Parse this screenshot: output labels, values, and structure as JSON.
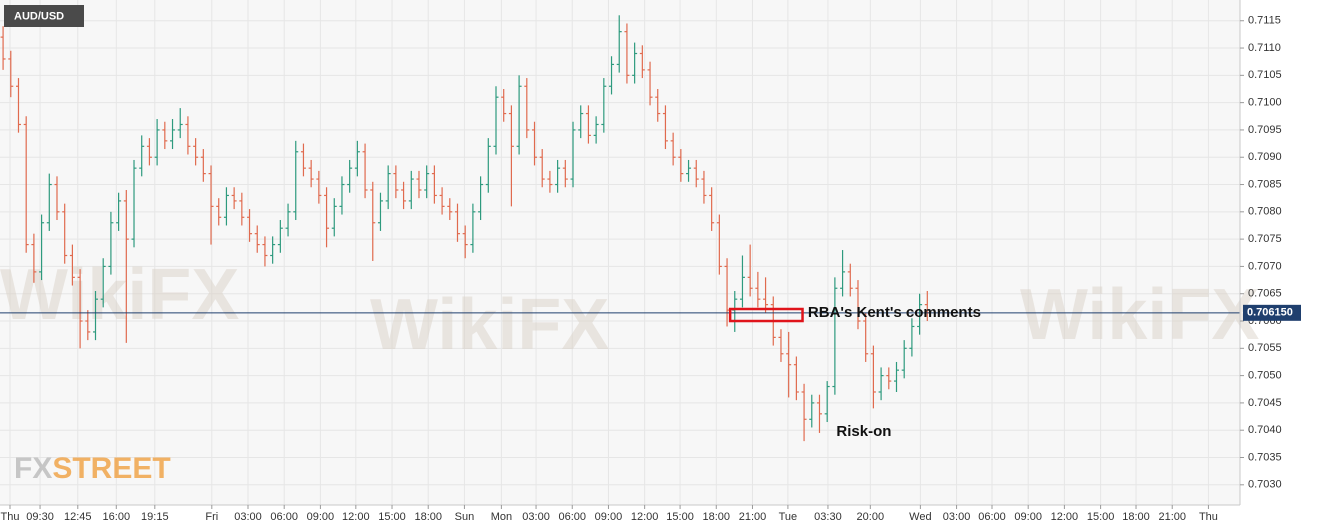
{
  "chart_data": {
    "type": "ohlc",
    "symbol": "AUD/USD",
    "logo": [
      "FX",
      "STREET"
    ],
    "watermark": "WikiFX",
    "up_color": "#2e9a7e",
    "down_color": "#e06a4e",
    "grid": true,
    "xlim": [
      -0.4,
      160.6
    ],
    "ylim": [
      0.70263,
      0.71188
    ],
    "yticks": [
      {
        "value": 0.703,
        "label": "0.7030"
      },
      {
        "value": 0.7035,
        "label": "0.7035"
      },
      {
        "value": 0.704,
        "label": "0.7040"
      },
      {
        "value": 0.7045,
        "label": "0.7045"
      },
      {
        "value": 0.705,
        "label": "0.7050"
      },
      {
        "value": 0.7055,
        "label": "0.7055"
      },
      {
        "value": 0.706,
        "label": "0.7060"
      },
      {
        "value": 0.7065,
        "label": "0.7065"
      },
      {
        "value": 0.707,
        "label": "0.7070"
      },
      {
        "value": 0.7075,
        "label": "0.7075"
      },
      {
        "value": 0.708,
        "label": "0.7080"
      },
      {
        "value": 0.7085,
        "label": "0.7085"
      },
      {
        "value": 0.709,
        "label": "0.7090"
      },
      {
        "value": 0.7095,
        "label": "0.7095"
      },
      {
        "value": 0.71,
        "label": "0.7100"
      },
      {
        "value": 0.7105,
        "label": "0.7105"
      },
      {
        "value": 0.711,
        "label": "0.7110"
      },
      {
        "value": 0.7115,
        "label": "0.7115"
      }
    ],
    "xticks": [
      {
        "value": 0.9,
        "label": "Thu"
      },
      {
        "value": 4.8,
        "label": "09:30"
      },
      {
        "value": 9.7,
        "label": "12:45"
      },
      {
        "value": 14.7,
        "label": "16:00"
      },
      {
        "value": 19.7,
        "label": "19:15"
      },
      {
        "value": 27.1,
        "label": "Fri"
      },
      {
        "value": 31.8,
        "label": "03:00"
      },
      {
        "value": 36.5,
        "label": "06:00"
      },
      {
        "value": 41.2,
        "label": "09:00"
      },
      {
        "value": 45.8,
        "label": "12:00"
      },
      {
        "value": 50.5,
        "label": "15:00"
      },
      {
        "value": 55.2,
        "label": "18:00"
      },
      {
        "value": 59.9,
        "label": "Sun"
      },
      {
        "value": 64.7,
        "label": "Mon"
      },
      {
        "value": 69.2,
        "label": "03:00"
      },
      {
        "value": 73.9,
        "label": "06:00"
      },
      {
        "value": 78.6,
        "label": "09:00"
      },
      {
        "value": 83.3,
        "label": "12:00"
      },
      {
        "value": 87.9,
        "label": "15:00"
      },
      {
        "value": 92.6,
        "label": "18:00"
      },
      {
        "value": 97.3,
        "label": "21:00"
      },
      {
        "value": 101.9,
        "label": "Tue"
      },
      {
        "value": 107.1,
        "label": "03:30"
      },
      {
        "value": 112.6,
        "label": "20:00"
      },
      {
        "value": 119.1,
        "label": "Wed"
      },
      {
        "value": 123.8,
        "label": "03:00"
      },
      {
        "value": 128.4,
        "label": "06:00"
      },
      {
        "value": 133.1,
        "label": "09:00"
      },
      {
        "value": 137.8,
        "label": "12:00"
      },
      {
        "value": 142.5,
        "label": "15:00"
      },
      {
        "value": 147.1,
        "label": "18:00"
      },
      {
        "value": 151.8,
        "label": "21:00"
      },
      {
        "value": 156.5,
        "label": "Thu"
      }
    ],
    "open": [
      0.7112,
      0.7108,
      0.7103,
      0.7096,
      0.7074,
      0.7069,
      0.7078,
      0.7085,
      0.708,
      0.7072,
      0.7068,
      0.706,
      0.7058,
      0.7064,
      0.707,
      0.7078,
      0.7082,
      0.7075,
      0.7088,
      0.7092,
      0.709,
      0.7095,
      0.7093,
      0.7095,
      0.7096,
      0.7092,
      0.709,
      0.7087,
      0.7081,
      0.7079,
      0.7083,
      0.7082,
      0.7079,
      0.7076,
      0.7074,
      0.7072,
      0.7074,
      0.7077,
      0.708,
      0.7091,
      0.7088,
      0.7086,
      0.7083,
      0.7077,
      0.7081,
      0.7085,
      0.7088,
      0.7091,
      0.7084,
      0.7078,
      0.7082,
      0.7087,
      0.7084,
      0.7082,
      0.7086,
      0.7084,
      0.7087,
      0.7083,
      0.7081,
      0.708,
      0.7076,
      0.7074,
      0.708,
      0.7085,
      0.7092,
      0.7101,
      0.7098,
      0.7092,
      0.7103,
      0.7095,
      0.709,
      0.7086,
      0.7085,
      0.7088,
      0.7086,
      0.7095,
      0.7098,
      0.7094,
      0.7096,
      0.7103,
      0.7107,
      0.7113,
      0.7105,
      0.7109,
      0.7106,
      0.7101,
      0.7098,
      0.7093,
      0.709,
      0.7087,
      0.7088,
      0.7086,
      0.7083,
      0.7078,
      0.707,
      0.7062,
      0.7064,
      0.7068,
      0.7066,
      0.7064,
      0.7063,
      0.7057,
      0.7054,
      0.7052,
      0.7047,
      0.7042,
      0.7045,
      0.7043,
      0.7048,
      0.7066,
      0.7069,
      0.7066,
      0.706,
      0.7054,
      0.7047,
      0.705,
      0.7049,
      0.7051,
      0.7055,
      0.7059,
      0.7063
    ],
    "high": [
      0.7114,
      0.71095,
      0.71045,
      0.70975,
      0.7076,
      0.70795,
      0.7087,
      0.70865,
      0.70815,
      0.7074,
      0.70695,
      0.7062,
      0.70655,
      0.70715,
      0.708,
      0.70835,
      0.7084,
      0.70895,
      0.7094,
      0.70935,
      0.7097,
      0.70965,
      0.7097,
      0.7099,
      0.70975,
      0.70935,
      0.70915,
      0.70885,
      0.70825,
      0.70845,
      0.70845,
      0.70835,
      0.70805,
      0.70775,
      0.70755,
      0.70755,
      0.70785,
      0.70815,
      0.7093,
      0.70925,
      0.70895,
      0.70875,
      0.70845,
      0.70825,
      0.70865,
      0.70895,
      0.7093,
      0.70925,
      0.70855,
      0.70835,
      0.70885,
      0.70885,
      0.70855,
      0.70875,
      0.70875,
      0.70885,
      0.70885,
      0.70845,
      0.70825,
      0.70815,
      0.70775,
      0.70815,
      0.70865,
      0.70935,
      0.7103,
      0.71025,
      0.70995,
      0.7105,
      0.71045,
      0.70965,
      0.70915,
      0.70875,
      0.70895,
      0.70895,
      0.70965,
      0.70995,
      0.70995,
      0.70975,
      0.71045,
      0.71085,
      0.7116,
      0.71145,
      0.7111,
      0.71105,
      0.71075,
      0.71025,
      0.70995,
      0.70945,
      0.70915,
      0.70895,
      0.70895,
      0.70875,
      0.70845,
      0.70795,
      0.70715,
      0.70655,
      0.7072,
      0.7074,
      0.7069,
      0.7068,
      0.70645,
      0.70585,
      0.7058,
      0.70535,
      0.70485,
      0.70465,
      0.70465,
      0.7049,
      0.7068,
      0.7073,
      0.70705,
      0.70675,
      0.70615,
      0.70555,
      0.70515,
      0.70515,
      0.70525,
      0.70565,
      0.70605,
      0.7065,
      0.70655
    ],
    "low": [
      0.7106,
      0.7101,
      0.70945,
      0.70725,
      0.7067,
      0.70675,
      0.70765,
      0.70785,
      0.70705,
      0.70665,
      0.7055,
      0.70565,
      0.70565,
      0.70625,
      0.70685,
      0.70765,
      0.7056,
      0.70735,
      0.70865,
      0.70885,
      0.70885,
      0.70915,
      0.70915,
      0.70935,
      0.70905,
      0.70885,
      0.70855,
      0.7074,
      0.70775,
      0.70775,
      0.70805,
      0.70775,
      0.70745,
      0.70725,
      0.707,
      0.70705,
      0.70725,
      0.70755,
      0.70785,
      0.70865,
      0.70845,
      0.70815,
      0.70735,
      0.70755,
      0.70795,
      0.70835,
      0.70865,
      0.70825,
      0.7071,
      0.70765,
      0.70805,
      0.70825,
      0.70805,
      0.70805,
      0.70825,
      0.70825,
      0.70815,
      0.70795,
      0.70785,
      0.70745,
      0.70715,
      0.70725,
      0.70785,
      0.70835,
      0.70905,
      0.70965,
      0.7081,
      0.70905,
      0.70935,
      0.70885,
      0.70845,
      0.70835,
      0.70835,
      0.70845,
      0.70845,
      0.70935,
      0.70925,
      0.70925,
      0.70945,
      0.71015,
      0.71055,
      0.71035,
      0.71035,
      0.71045,
      0.70995,
      0.70965,
      0.70915,
      0.70885,
      0.70855,
      0.70855,
      0.70845,
      0.70815,
      0.70765,
      0.70685,
      0.7059,
      0.7058,
      0.70625,
      0.70645,
      0.70625,
      0.70615,
      0.70555,
      0.70525,
      0.7046,
      0.70455,
      0.7038,
      0.70405,
      0.70395,
      0.70415,
      0.70465,
      0.70645,
      0.70645,
      0.70585,
      0.70525,
      0.7044,
      0.70455,
      0.70475,
      0.7047,
      0.70495,
      0.70535,
      0.70575,
      0.706
    ],
    "close": [
      0.7108,
      0.7103,
      0.7096,
      0.7074,
      0.7069,
      0.7078,
      0.7085,
      0.708,
      0.7072,
      0.7068,
      0.706,
      0.7058,
      0.7064,
      0.707,
      0.7078,
      0.7082,
      0.7075,
      0.7088,
      0.7092,
      0.709,
      0.7095,
      0.7093,
      0.7095,
      0.7096,
      0.7092,
      0.709,
      0.7087,
      0.7081,
      0.7079,
      0.7083,
      0.7082,
      0.7079,
      0.7076,
      0.7074,
      0.7072,
      0.7074,
      0.7077,
      0.708,
      0.7091,
      0.7088,
      0.7086,
      0.7083,
      0.7077,
      0.7081,
      0.7085,
      0.7088,
      0.7091,
      0.7084,
      0.7078,
      0.7082,
      0.7087,
      0.7084,
      0.7082,
      0.7086,
      0.7084,
      0.7087,
      0.7083,
      0.7081,
      0.708,
      0.7076,
      0.7074,
      0.708,
      0.7085,
      0.7092,
      0.7101,
      0.7098,
      0.7092,
      0.7103,
      0.7095,
      0.709,
      0.7086,
      0.7085,
      0.7088,
      0.7086,
      0.7095,
      0.7098,
      0.7094,
      0.7096,
      0.7103,
      0.7107,
      0.7113,
      0.7105,
      0.7109,
      0.7106,
      0.7101,
      0.7098,
      0.7093,
      0.709,
      0.7087,
      0.7088,
      0.7086,
      0.7083,
      0.7078,
      0.707,
      0.7062,
      0.7064,
      0.7068,
      0.7066,
      0.7064,
      0.7063,
      0.7057,
      0.7054,
      0.7052,
      0.7047,
      0.7042,
      0.7045,
      0.7043,
      0.7048,
      0.7066,
      0.7069,
      0.7066,
      0.706,
      0.7054,
      0.7047,
      0.705,
      0.7049,
      0.7051,
      0.7055,
      0.7059,
      0.7063,
      0.70615
    ],
    "current_price": {
      "value": 0.70615,
      "label": "0.706150",
      "color": "#1f3f6e"
    },
    "highlight": {
      "x": [
        94.4,
        103.8
      ],
      "y": [
        0.706,
        0.70622
      ],
      "color": "#e0141b"
    },
    "annotations": [
      {
        "text": "RBA's Kent's comments",
        "x": 104.5,
        "y": 0.70615
      },
      {
        "text": "Risk-on",
        "x": 108.2,
        "y": 0.70397
      }
    ]
  }
}
